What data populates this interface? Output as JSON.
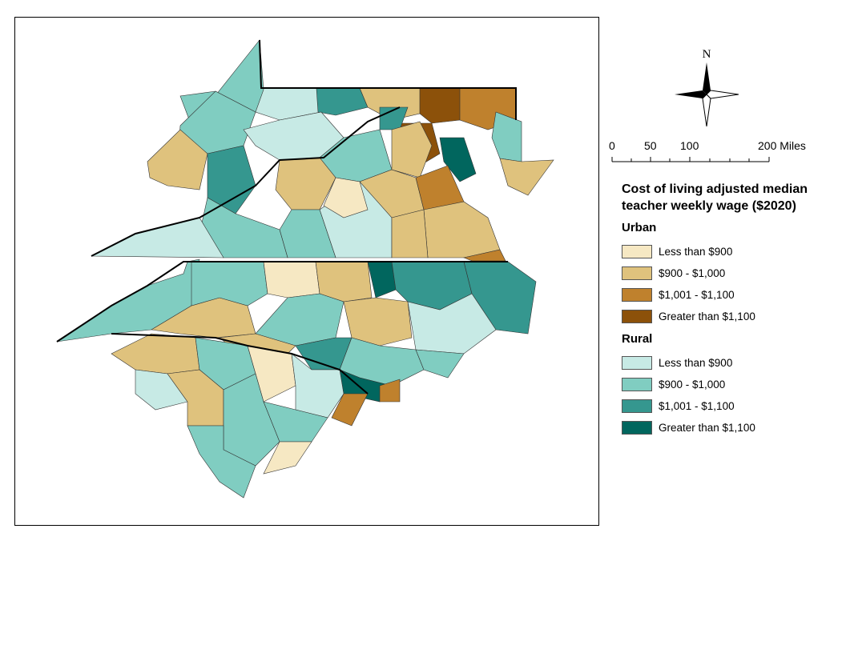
{
  "legend": {
    "title": "Cost of living adjusted median teacher weekly wage ($2020)",
    "groups": [
      {
        "name": "Urban",
        "classes": [
          {
            "label": "Less than $900",
            "color": "#f6e8c3"
          },
          {
            "label": "$900 - $1,000",
            "color": "#dfc27d"
          },
          {
            "label": "$1,001 - $1,100",
            "color": "#bf812d"
          },
          {
            "label": "Greater than $1,100",
            "color": "#8c510a"
          }
        ]
      },
      {
        "name": "Rural",
        "classes": [
          {
            "label": "Less than $900",
            "color": "#c7eae5"
          },
          {
            "label": "$900 - $1,000",
            "color": "#80cdc1"
          },
          {
            "label": "$1,001 - $1,100",
            "color": "#35978f"
          },
          {
            "label": "Greater than $1,100",
            "color": "#01665e"
          }
        ]
      }
    ]
  },
  "north_arrow": {
    "label": "N"
  },
  "scale_bar": {
    "ticks": [
      "0",
      "50",
      "100",
      "200 Miles"
    ]
  }
}
